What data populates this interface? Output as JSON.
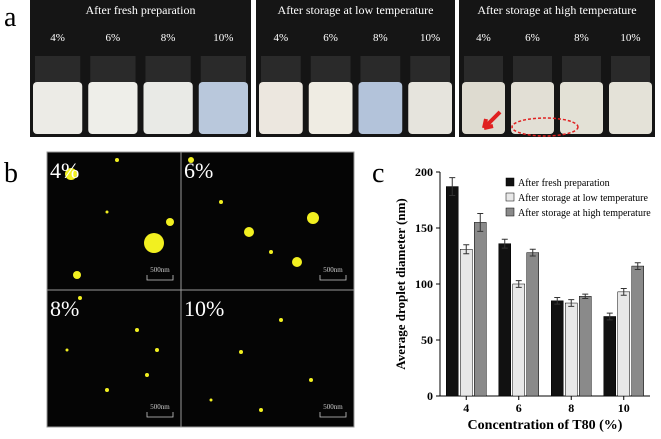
{
  "panel_a": {
    "label": "a",
    "groups": [
      {
        "title": "After fresh preparation",
        "concentrations": [
          "4%",
          "6%",
          "8%",
          "10%"
        ]
      },
      {
        "title": "After storage at low temperature",
        "concentrations": [
          "4%",
          "6%",
          "8%",
          "10%"
        ]
      },
      {
        "title": "After storage at high temperature",
        "concentrations": [
          "4%",
          "6%",
          "8%",
          "10%"
        ]
      }
    ]
  },
  "panel_b": {
    "label": "b",
    "quadrants": [
      {
        "label": "4%",
        "scale": "500nm"
      },
      {
        "label": "6%",
        "scale": "500nm"
      },
      {
        "label": "8%",
        "scale": "500nm"
      },
      {
        "label": "10%",
        "scale": "500nm"
      }
    ]
  },
  "chart_data": {
    "type": "bar",
    "panel_label": "c",
    "x_label": "Concentration of T80 (%)",
    "y_label": "Average droplet diameter (nm)",
    "categories": [
      "4",
      "6",
      "8",
      "10"
    ],
    "series": [
      {
        "name": "After fresh preparation",
        "color": "#111111",
        "values": [
          187,
          136,
          85,
          71
        ],
        "errors": [
          8,
          4,
          3,
          3
        ]
      },
      {
        "name": "After storage at low temperature",
        "color": "#e8e8e8",
        "values": [
          131,
          100,
          83,
          93
        ],
        "errors": [
          4,
          3,
          3,
          3
        ]
      },
      {
        "name": "After storage at high temperature",
        "color": "#8a8a8a",
        "values": [
          155,
          128,
          89,
          116
        ],
        "errors": [
          8,
          3,
          2,
          3
        ]
      }
    ],
    "ylim": [
      0,
      200
    ],
    "yticks": [
      0,
      50,
      100,
      150,
      200
    ],
    "legend": "upper right"
  }
}
